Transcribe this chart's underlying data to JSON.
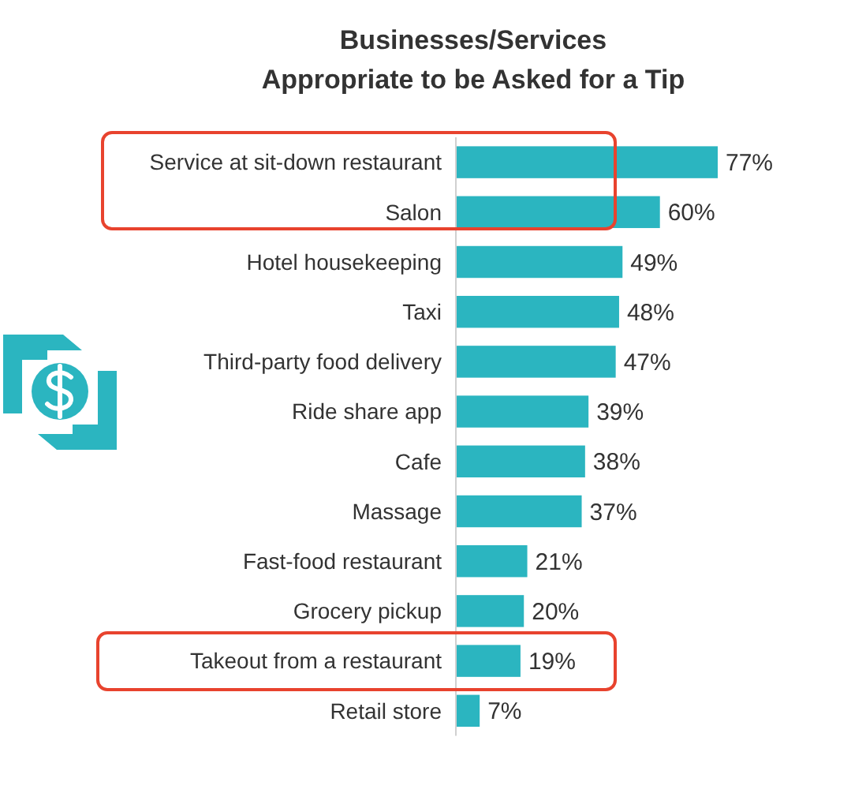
{
  "chart_data": {
    "type": "bar",
    "orientation": "horizontal",
    "title": "Businesses/Services\nAppropriate to be Asked for a Tip",
    "categories": [
      "Service at sit-down restaurant",
      "Salon",
      "Hotel housekeeping",
      "Taxi",
      "Third-party food delivery",
      "Ride share app",
      "Cafe",
      "Massage",
      "Fast-food restaurant",
      "Grocery pickup",
      "Takeout from a restaurant",
      "Retail store"
    ],
    "values": [
      77,
      60,
      49,
      48,
      47,
      39,
      38,
      37,
      21,
      20,
      19,
      7
    ],
    "value_labels": [
      "77%",
      "60%",
      "49%",
      "48%",
      "47%",
      "39%",
      "38%",
      "37%",
      "21%",
      "20%",
      "19%",
      "7%"
    ],
    "color": "#2bb5c0"
  }
}
